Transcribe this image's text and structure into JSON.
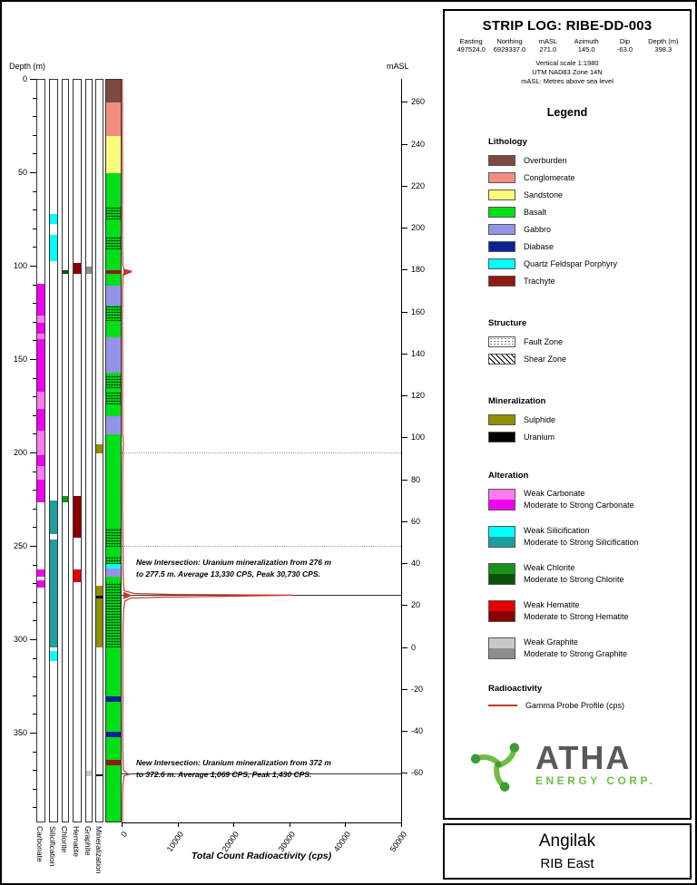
{
  "header": {
    "title": "STRIP LOG: RIBE-DD-003",
    "info": {
      "headers": [
        "Easting",
        "Northing",
        "mASL",
        "Azimuth",
        "Dip",
        "Depth (m)"
      ],
      "values": [
        "497524.0",
        "6929337.0",
        "271.0",
        "145.0",
        "-63.0",
        "398.3"
      ]
    },
    "notes": [
      "Vertical scale 1:1980",
      "UTM NAD83 Zone 14N",
      "mASL: Metres above sea level"
    ]
  },
  "legend": {
    "title": "Legend",
    "lithology": {
      "title": "Lithology",
      "items": [
        {
          "label": "Overburden",
          "color": "#7D4A42"
        },
        {
          "label": "Conglomerate",
          "color": "#F28E80"
        },
        {
          "label": "Sandstone",
          "color": "#FDFD7C"
        },
        {
          "label": "Basalt",
          "color": "#00DE1A"
        },
        {
          "label": "Gabbro",
          "color": "#9593E8"
        },
        {
          "label": "Diabase",
          "color": "#0B2290"
        },
        {
          "label": "Quartz Feldspar Porphyry",
          "color": "#00FFFF"
        },
        {
          "label": "Trachyte",
          "color": "#8D1B12"
        }
      ]
    },
    "structure": {
      "title": "Structure",
      "items": [
        {
          "label": "Fault Zone",
          "pattern": "fault"
        },
        {
          "label": "Shear Zone",
          "pattern": "shear"
        }
      ]
    },
    "mineralization": {
      "title": "Mineralization",
      "items": [
        {
          "label": "Sulphide",
          "color": "#8F8F00"
        },
        {
          "label": "Uranium",
          "color": "#000000"
        }
      ]
    },
    "alteration": {
      "title": "Alteration",
      "items": [
        {
          "weak_label": "Weak Carbonate",
          "strong_label": "Moderate to Strong Carbonate",
          "weak_color": "#FF7BF2",
          "strong_color": "#EF00EF"
        },
        {
          "weak_label": "Weak Silicification",
          "strong_label": "Moderate to Strong Silicification",
          "weak_color": "#00FFFF",
          "strong_color": "#1F9E9E"
        },
        {
          "weak_label": "Weak Chlorite",
          "strong_label": "Moderate to Strong Chlorite",
          "weak_color": "#189218",
          "strong_color": "#0A520A"
        },
        {
          "weak_label": "Weak Hematite",
          "strong_label": "Moderate to Strong Hematite",
          "weak_color": "#E60000",
          "strong_color": "#8B0000"
        },
        {
          "weak_label": "Weak Graphite",
          "strong_label": "Moderate to Strong Graphite",
          "weak_color": "#C9C9C9",
          "strong_color": "#8E8E8E"
        }
      ]
    },
    "radioactivity": {
      "title": "Radioactivity",
      "items": [
        {
          "label": "Gamma Probe Profile (cps)",
          "color": "#C0392B"
        }
      ]
    }
  },
  "logo": {
    "name": "ATHA",
    "subtitle": "ENERGY CORP.",
    "accent": "#6FBE44",
    "accent_dark": "#3E9C35",
    "text_color": "#58595B"
  },
  "footer": {
    "project": "Angilak",
    "area": "RIB East"
  },
  "chart_data": {
    "type": "strip-log",
    "title": "STRIP LOG: RIBE-DD-003",
    "depth_axis": {
      "label": "Depth (m)",
      "ticks": [
        0,
        50,
        100,
        150,
        200,
        250,
        300,
        350
      ],
      "minor_interval": 10,
      "max_depth": 398.3
    },
    "masl_axis": {
      "label": "mASL",
      "ticks": [
        260,
        240,
        220,
        200,
        180,
        160,
        140,
        120,
        100,
        80,
        60,
        40,
        20,
        0,
        -20,
        -40,
        -60
      ],
      "collar_masl": 271.0,
      "masl_per_depth_m": 0.891
    },
    "radioactivity_axis": {
      "label": "Total Count Radioactivity (cps)",
      "ticks": [
        0,
        10000,
        20000,
        30000,
        40000,
        50000
      ],
      "max": 50000
    },
    "lithology_column": {
      "label": "Lithology",
      "intervals": [
        {
          "from": 0,
          "to": 12,
          "unit": "Overburden"
        },
        {
          "from": 12,
          "to": 30,
          "unit": "Conglomerate"
        },
        {
          "from": 30,
          "to": 50,
          "unit": "Sandstone"
        },
        {
          "from": 50,
          "to": 102,
          "unit": "Basalt"
        },
        {
          "from": 102,
          "to": 104,
          "unit": "Trachyte"
        },
        {
          "from": 104,
          "to": 110,
          "unit": "Basalt"
        },
        {
          "from": 110,
          "to": 121,
          "unit": "Gabbro"
        },
        {
          "from": 121,
          "to": 138,
          "unit": "Basalt"
        },
        {
          "from": 138,
          "to": 157,
          "unit": "Gabbro"
        },
        {
          "from": 157,
          "to": 180,
          "unit": "Basalt"
        },
        {
          "from": 180,
          "to": 190,
          "unit": "Gabbro"
        },
        {
          "from": 190,
          "to": 259,
          "unit": "Basalt"
        },
        {
          "from": 259,
          "to": 261.5,
          "unit": "Quartz Feldspar Porphyry"
        },
        {
          "from": 261.5,
          "to": 266,
          "unit": "Gabbro"
        },
        {
          "from": 266,
          "to": 330,
          "unit": "Basalt"
        },
        {
          "from": 330,
          "to": 333,
          "unit": "Diabase"
        },
        {
          "from": 333,
          "to": 349,
          "unit": "Basalt"
        },
        {
          "from": 349,
          "to": 352,
          "unit": "Diabase"
        },
        {
          "from": 352,
          "to": 364,
          "unit": "Basalt"
        },
        {
          "from": 364,
          "to": 367,
          "unit": "Trachyte"
        },
        {
          "from": 367,
          "to": 398.3,
          "unit": "Basalt"
        }
      ]
    },
    "fault_zones_m": [
      [
        68,
        75
      ],
      [
        84,
        91
      ],
      [
        121,
        129
      ],
      [
        158,
        165
      ],
      [
        167,
        174
      ],
      [
        240,
        250
      ],
      [
        255,
        259
      ],
      [
        269,
        304
      ]
    ],
    "alteration_columns": [
      {
        "name": "Carbonate",
        "intervals": [
          {
            "from": 109,
            "to": 126,
            "color": "#EF00EF"
          },
          {
            "from": 126,
            "to": 130,
            "color": "#FF7BF2"
          },
          {
            "from": 130,
            "to": 136,
            "color": "#EF00EF"
          },
          {
            "from": 136,
            "to": 139,
            "color": "#FF7BF2"
          },
          {
            "from": 139,
            "to": 167,
            "color": "#EF00EF"
          },
          {
            "from": 167,
            "to": 176,
            "color": "#FF7BF2"
          },
          {
            "from": 176,
            "to": 188,
            "color": "#EF00EF"
          },
          {
            "from": 188,
            "to": 201,
            "color": "#FF7BF2"
          },
          {
            "from": 201,
            "to": 207,
            "color": "#EF00EF"
          },
          {
            "from": 207,
            "to": 214,
            "color": "#FF7BF2"
          },
          {
            "from": 214,
            "to": 226,
            "color": "#EF00EF"
          },
          {
            "from": 262,
            "to": 266,
            "color": "#EF00EF"
          },
          {
            "from": 268,
            "to": 272,
            "color": "#EF00EF"
          }
        ]
      },
      {
        "name": "Silicification",
        "intervals": [
          {
            "from": 72,
            "to": 77,
            "color": "#00FFFF"
          },
          {
            "from": 83,
            "to": 97,
            "color": "#00FFFF"
          },
          {
            "from": 225,
            "to": 243,
            "color": "#1F9E9E"
          },
          {
            "from": 246,
            "to": 304,
            "color": "#1F9E9E"
          },
          {
            "from": 306,
            "to": 311,
            "color": "#00FFFF"
          }
        ]
      },
      {
        "name": "Chlorite",
        "intervals": [
          {
            "from": 102,
            "to": 104,
            "color": "#0A520A"
          },
          {
            "from": 223,
            "to": 226,
            "color": "#189218"
          }
        ]
      },
      {
        "name": "Hematite",
        "intervals": [
          {
            "from": 98,
            "to": 104,
            "color": "#8B0000"
          },
          {
            "from": 223,
            "to": 245,
            "color": "#8B0000"
          },
          {
            "from": 262,
            "to": 269,
            "color": "#E60000"
          }
        ]
      },
      {
        "name": "Graphite",
        "intervals": [
          {
            "from": 100,
            "to": 104,
            "color": "#8E8E8E"
          },
          {
            "from": 370,
            "to": 373,
            "color": "#C9C9C9"
          }
        ]
      },
      {
        "name": "Mineralization",
        "intervals": [
          {
            "from": 195,
            "to": 200,
            "color": "#8F8F00"
          },
          {
            "from": 271,
            "to": 304,
            "color": "#8F8F00"
          },
          {
            "from": 276,
            "to": 277.5,
            "color": "#000000"
          },
          {
            "from": 372,
            "to": 372.6,
            "color": "#000000"
          }
        ]
      }
    ],
    "gridlines_m": [
      200,
      250
    ],
    "marker_lines_m": [
      276,
      372
    ],
    "arrow_markers_m": [
      103.4,
      276.6
    ],
    "gamma_profile_cps": [
      [
        0,
        120
      ],
      [
        15,
        150
      ],
      [
        30,
        130
      ],
      [
        45,
        160
      ],
      [
        60,
        140
      ],
      [
        75,
        150
      ],
      [
        90,
        170
      ],
      [
        100,
        220
      ],
      [
        102,
        400
      ],
      [
        103,
        1800
      ],
      [
        103.6,
        800
      ],
      [
        104.5,
        260
      ],
      [
        115,
        160
      ],
      [
        130,
        150
      ],
      [
        150,
        180
      ],
      [
        170,
        160
      ],
      [
        190,
        180
      ],
      [
        195,
        320
      ],
      [
        198,
        260
      ],
      [
        210,
        180
      ],
      [
        230,
        170
      ],
      [
        245,
        220
      ],
      [
        258,
        280
      ],
      [
        263,
        240
      ],
      [
        270,
        320
      ],
      [
        274,
        450
      ],
      [
        275.5,
        2200
      ],
      [
        276,
        9500
      ],
      [
        276.4,
        30730
      ],
      [
        276.9,
        21000
      ],
      [
        277.3,
        12500
      ],
      [
        277.5,
        6500
      ],
      [
        278,
        1600
      ],
      [
        279.5,
        600
      ],
      [
        284,
        350
      ],
      [
        292,
        260
      ],
      [
        305,
        210
      ],
      [
        320,
        190
      ],
      [
        332,
        230
      ],
      [
        345,
        180
      ],
      [
        358,
        200
      ],
      [
        365,
        260
      ],
      [
        370,
        300
      ],
      [
        371.8,
        950
      ],
      [
        372.3,
        1430
      ],
      [
        372.6,
        1050
      ],
      [
        373.2,
        420
      ],
      [
        378,
        220
      ],
      [
        386,
        170
      ],
      [
        394,
        140
      ],
      [
        398,
        130
      ]
    ],
    "annotations": [
      {
        "at_depth_m": 256,
        "lines": [
          "New Intersection: Uranium mineralization from 276 m",
          "to 277.5 m. Average 13,330 CPS, Peak 30,730 CPS."
        ]
      },
      {
        "at_depth_m": 363,
        "lines": [
          "New Intersection: Uranium mineralization from 372 m",
          "to 372.6 m. Average 1,069 CPS, Peak 1,430 CPS."
        ]
      }
    ]
  }
}
